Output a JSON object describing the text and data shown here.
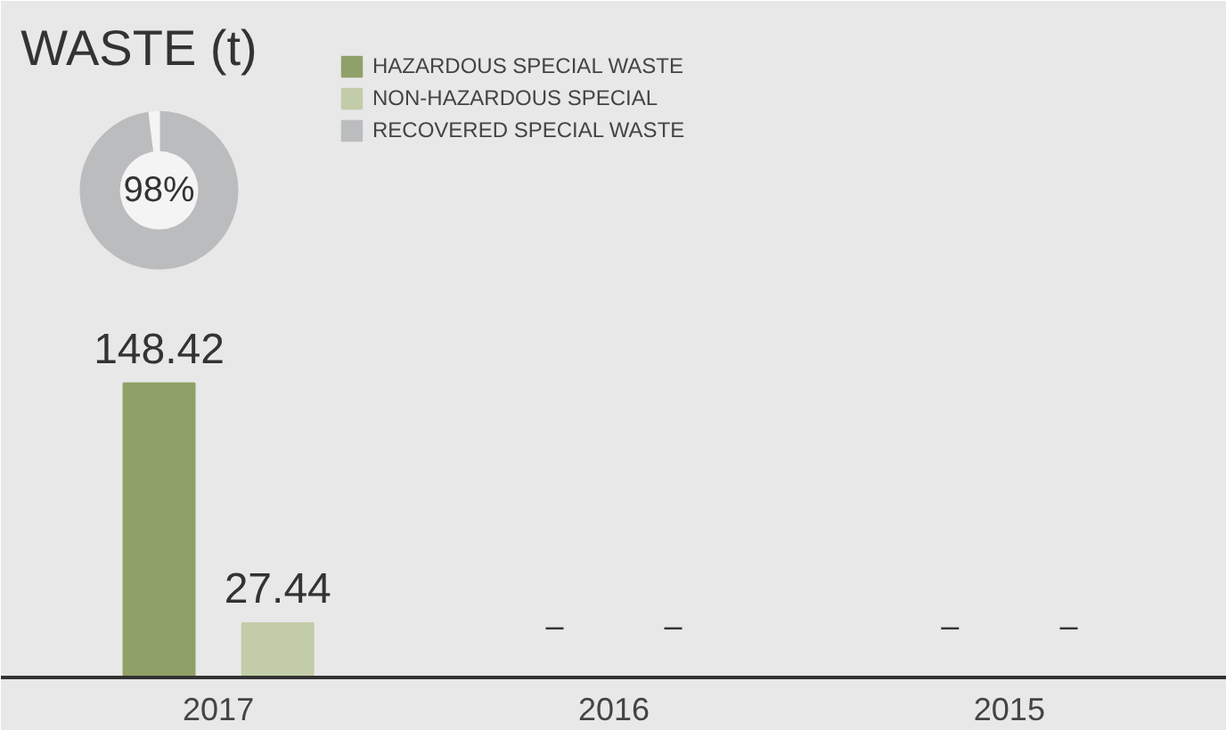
{
  "chart_data": [
    {
      "type": "donut",
      "categories": [
        "RECOVERED SPECIAL WASTE",
        null
      ],
      "values": [
        98,
        2
      ],
      "colors": [
        "#bbbcbe",
        "#f4f4f4"
      ],
      "value_labels": [
        "98%",
        null
      ]
    },
    {
      "type": "bar",
      "title": "WASTE (t)",
      "categories": [
        "2017",
        "2016",
        "2015"
      ],
      "series": [
        {
          "name": "HAZARDOUS SPECIAL WASTE",
          "color": "#8fa068",
          "values": [
            148.42,
            null,
            null
          ],
          "value_labels": [
            "148.42",
            "–",
            "–"
          ]
        },
        {
          "name": "NON-HAZARDOUS SPECIAL",
          "color": "#c3cca8",
          "values": [
            27.44,
            null,
            null
          ],
          "value_labels": [
            "27.44",
            "–",
            "–"
          ]
        }
      ],
      "legend": "top",
      "tick_labels": "x"
    }
  ]
}
